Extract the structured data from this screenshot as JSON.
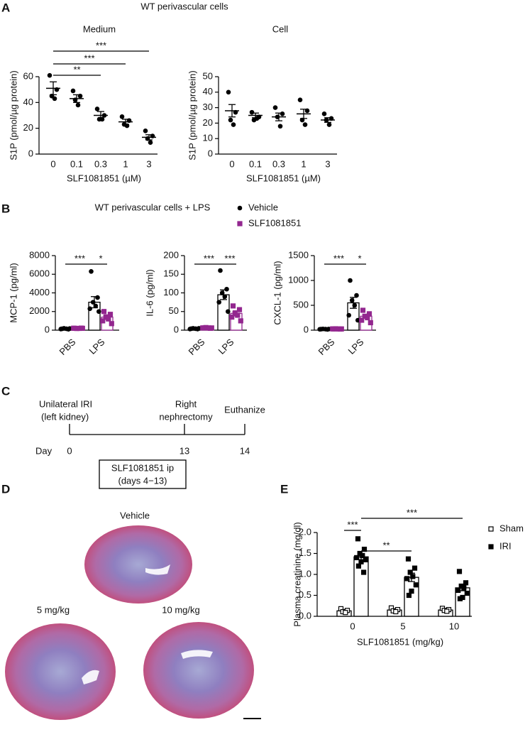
{
  "panel_labels": [
    "A",
    "B",
    "C",
    "D",
    "E"
  ],
  "panel_a_title": "WT perivascular cells",
  "panel_b_title": "WT perivascular cells + LPS",
  "chart_data": [
    {
      "type": "dot",
      "title": "Medium",
      "ylabel": "S1P (pmol/µg protein)",
      "xlabel": "SLF1081851 (µM)",
      "categories": [
        "0",
        "0.1",
        "0.3",
        "1",
        "3"
      ],
      "color": "#000000",
      "values": [
        51,
        43,
        30,
        25,
        13
      ],
      "errors": [
        5,
        3,
        3,
        2,
        2
      ],
      "points": [
        [
          61,
          50,
          45,
          43
        ],
        [
          49,
          45,
          42,
          38
        ],
        [
          35,
          30,
          27,
          27
        ],
        [
          29,
          26,
          23,
          22
        ],
        [
          18,
          14,
          12,
          9
        ]
      ],
      "ylim": [
        0,
        60
      ],
      "yticks": [
        0,
        20,
        40,
        60
      ],
      "significance": [
        {
          "label": "***",
          "between": [
            0,
            4
          ]
        },
        {
          "label": "***",
          "between": [
            0,
            3
          ]
        },
        {
          "label": "**",
          "between": [
            0,
            2
          ]
        }
      ]
    },
    {
      "type": "dot",
      "title": "Cell",
      "ylabel": "S1P (pmol/µg protein)",
      "xlabel": "SLF1081851 (µM)",
      "categories": [
        "0",
        "0.1",
        "0.3",
        "1",
        "3"
      ],
      "color": "#000000",
      "values": [
        28,
        25,
        24,
        26,
        22
      ],
      "errors": [
        4,
        1.5,
        2.5,
        3,
        1.5
      ],
      "points": [
        [
          40,
          27,
          22,
          19
        ],
        [
          27,
          24,
          22,
          23
        ],
        [
          30,
          26,
          24,
          18
        ],
        [
          35,
          28,
          22,
          19
        ],
        [
          26,
          23,
          22,
          19
        ]
      ],
      "ylim": [
        0,
        50
      ],
      "yticks": [
        0,
        10,
        20,
        30,
        40,
        50
      ]
    },
    {
      "type": "bar",
      "ylabel": "MCP-1 (pg/ml)",
      "categories": [
        "PBS",
        "LPS"
      ],
      "legend": true,
      "series": [
        {
          "name": "Vehicle",
          "color": "#000000",
          "marker": "circle",
          "filled": true,
          "values": [
            150,
            3000
          ],
          "errors": [
            30,
            600
          ],
          "points": [
            [
              150,
              100,
              200,
              150,
              120,
              180
            ],
            [
              6300,
              3500,
              3000,
              2600,
              2300,
              2000
            ]
          ]
        },
        {
          "name": "SLF1081851",
          "color": "#93278f",
          "marker": "square",
          "filled": true,
          "values": [
            200,
            1400
          ],
          "errors": [
            20,
            250
          ],
          "points": [
            [
              200,
              220,
              180,
              190,
              210,
              200
            ],
            [
              2000,
              1700,
              1400,
              1200,
              1000,
              700
            ]
          ]
        }
      ],
      "ylim": [
        0,
        8000
      ],
      "yticks": [
        0,
        2000,
        4000,
        6000,
        8000
      ],
      "significance": [
        {
          "label": "***",
          "between": [
            [
              0,
              0
            ],
            [
              1,
              0
            ]
          ]
        },
        {
          "label": "*",
          "between": [
            [
              1,
              0
            ],
            [
              1,
              1
            ]
          ]
        }
      ]
    },
    {
      "type": "bar",
      "ylabel": "IL-6 (pg/ml)",
      "categories": [
        "PBS",
        "LPS"
      ],
      "series": [
        {
          "color": "#000000",
          "marker": "circle",
          "filled": true,
          "values": [
            4,
            95
          ],
          "errors": [
            1,
            13
          ],
          "points": [
            [
              4,
              3,
              5,
              4,
              3,
              5
            ],
            [
              160,
              110,
              100,
              90,
              75,
              50
            ]
          ]
        },
        {
          "color": "#93278f",
          "marker": "square",
          "filled": true,
          "values": [
            6,
            45
          ],
          "errors": [
            1,
            7
          ],
          "points": [
            [
              6,
              5,
              7,
              6,
              6,
              6
            ],
            [
              65,
              55,
              45,
              40,
              35,
              25
            ]
          ]
        }
      ],
      "ylim": [
        0,
        200
      ],
      "yticks": [
        0,
        50,
        100,
        150,
        200
      ],
      "significance": [
        {
          "label": "***",
          "between": [
            [
              0,
              0
            ],
            [
              1,
              0
            ]
          ]
        },
        {
          "label": "***",
          "between": [
            [
              1,
              0
            ],
            [
              1,
              1
            ]
          ]
        }
      ]
    },
    {
      "type": "bar",
      "ylabel": "CXCL-1 (pg/ml)",
      "categories": [
        "PBS",
        "LPS"
      ],
      "series": [
        {
          "color": "#000000",
          "marker": "circle",
          "filled": true,
          "values": [
            20,
            550
          ],
          "errors": [
            5,
            110
          ],
          "points": [
            [
              20,
              15,
              25,
              20,
              18,
              22
            ],
            [
              1000,
              700,
              600,
              500,
              300,
              200
            ]
          ]
        },
        {
          "color": "#93278f",
          "marker": "square",
          "filled": true,
          "values": [
            25,
            280
          ],
          "errors": [
            5,
            40
          ],
          "points": [
            [
              25,
              22,
              28,
              24,
              26,
              25
            ],
            [
              400,
              330,
              280,
              250,
              200,
              150
            ]
          ]
        }
      ],
      "ylim": [
        0,
        1500
      ],
      "yticks": [
        0,
        500,
        1000,
        1500
      ],
      "significance": [
        {
          "label": "***",
          "between": [
            [
              0,
              0
            ],
            [
              1,
              0
            ]
          ]
        },
        {
          "label": "*",
          "between": [
            [
              1,
              0
            ],
            [
              1,
              1
            ]
          ]
        }
      ]
    },
    {
      "type": "bar",
      "ylabel": "Plasma creatinine (mg/dl)",
      "xlabel": "SLF1081851 (mg/kg)",
      "categories": [
        "0",
        "5",
        "10"
      ],
      "legend": true,
      "series": [
        {
          "name": "Sham",
          "color": "#000000",
          "marker": "square",
          "filled": false,
          "values": [
            0.13,
            0.15,
            0.15
          ],
          "errors": [
            0.03,
            0.03,
            0.02
          ],
          "points": [
            [
              0.18,
              0.14,
              0.11,
              0.09
            ],
            [
              0.2,
              0.16,
              0.13,
              0.11
            ],
            [
              0.19,
              0.16,
              0.14,
              0.12
            ]
          ]
        },
        {
          "name": "IRI",
          "color": "#000000",
          "marker": "square",
          "filled": true,
          "values": [
            1.42,
            0.93,
            0.68
          ],
          "errors": [
            0.07,
            0.1,
            0.07
          ],
          "points": [
            [
              1.85,
              1.6,
              1.5,
              1.45,
              1.4,
              1.35,
              1.3,
              1.2,
              1.05
            ],
            [
              1.37,
              1.15,
              1.05,
              0.95,
              0.9,
              0.75,
              0.6,
              0.5
            ],
            [
              1.07,
              0.8,
              0.72,
              0.68,
              0.62,
              0.55,
              0.45,
              0.42
            ]
          ]
        }
      ],
      "ylim": [
        0,
        2
      ],
      "yticks": [
        {
          "value": 0,
          "label": "0.0"
        },
        {
          "value": 0.5,
          "label": "0.5"
        },
        {
          "value": 1,
          "label": "1.0"
        },
        {
          "value": 1.5,
          "label": "1.5"
        },
        {
          "value": 2,
          "label": "2.0"
        }
      ],
      "significance": [
        {
          "label": "***",
          "between": [
            [
              0,
              1
            ],
            [
              2,
              1
            ]
          ]
        },
        {
          "label": "***",
          "between": [
            [
              0,
              0
            ],
            [
              0,
              1
            ]
          ]
        },
        {
          "label": "**",
          "between": [
            [
              0,
              1
            ],
            [
              1,
              1
            ]
          ]
        }
      ]
    }
  ],
  "timeline": {
    "events": [
      [
        "Unilateral IRI",
        "(left kidney)"
      ],
      [
        "Right",
        "nephrectomy"
      ],
      [
        "Euthanize"
      ]
    ],
    "day_label": "Day",
    "days": [
      0,
      13,
      14
    ],
    "treatment": [
      "SLF1081851 ip",
      "(days 4−13)"
    ]
  },
  "histology": {
    "labels": [
      "Vehicle",
      "5 mg/kg",
      "10 mg/kg"
    ]
  }
}
